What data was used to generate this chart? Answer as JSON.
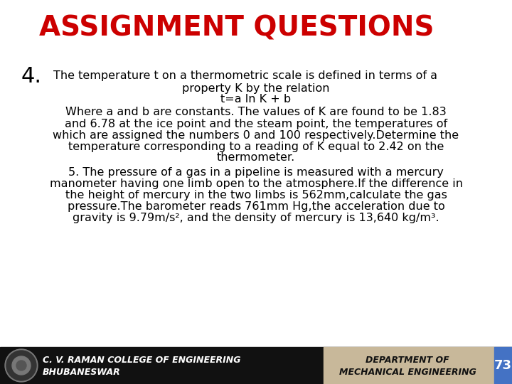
{
  "title": "ASSIGNMENT QUESTIONS",
  "title_color": "#cc0000",
  "title_fontsize": 28,
  "bg_color": "#ffffff",
  "num4_label": "4.",
  "num4_fontsize": 22,
  "line1": "The temperature t on a thermometric scale is defined in terms of a",
  "line2": "property K by the relation",
  "line3": "t=a ln K + b",
  "line4": "Where a and b are constants. The values of K are found to be 1.83",
  "line5": "and 6.78 at the ice point and the steam point, the temperatures of",
  "line6": "which are assigned the numbers 0 and 100 respectively.Determine the",
  "line7": "temperature corresponding to a reading of K equal to 2.42 on the",
  "line8": "thermometer.",
  "line9": "5. The pressure of a gas in a pipeline is measured with a mercury",
  "line10": "manometer having one limb open to the atmosphere.If the difference in",
  "line11": "the height of mercury in the two limbs is 562mm,calculate the gas",
  "line12": "pressure.The barometer reads 761mm Hg,the acceleration due to",
  "line13": "gravity is 9.79m/s², and the density of mercury is 13,640 kg/m³.",
  "footer_left_line1": "C. V. RAMAN COLLEGE OF ENGINEERING",
  "footer_left_line2": "BHUBANESWAR",
  "footer_right_line1": "DEPARTMENT OF",
  "footer_right_line2": "MECHANICAL ENGINEERING",
  "footer_number": "73",
  "footer_bg": "#111111",
  "footer_right_bg": "#c8b89a",
  "footer_num_bg": "#4472c4",
  "text_color": "#000000",
  "footer_text_color": "#ffffff",
  "footer_right_text_color": "#111111",
  "body_fontsize": 11.5,
  "footer_fontsize": 9
}
